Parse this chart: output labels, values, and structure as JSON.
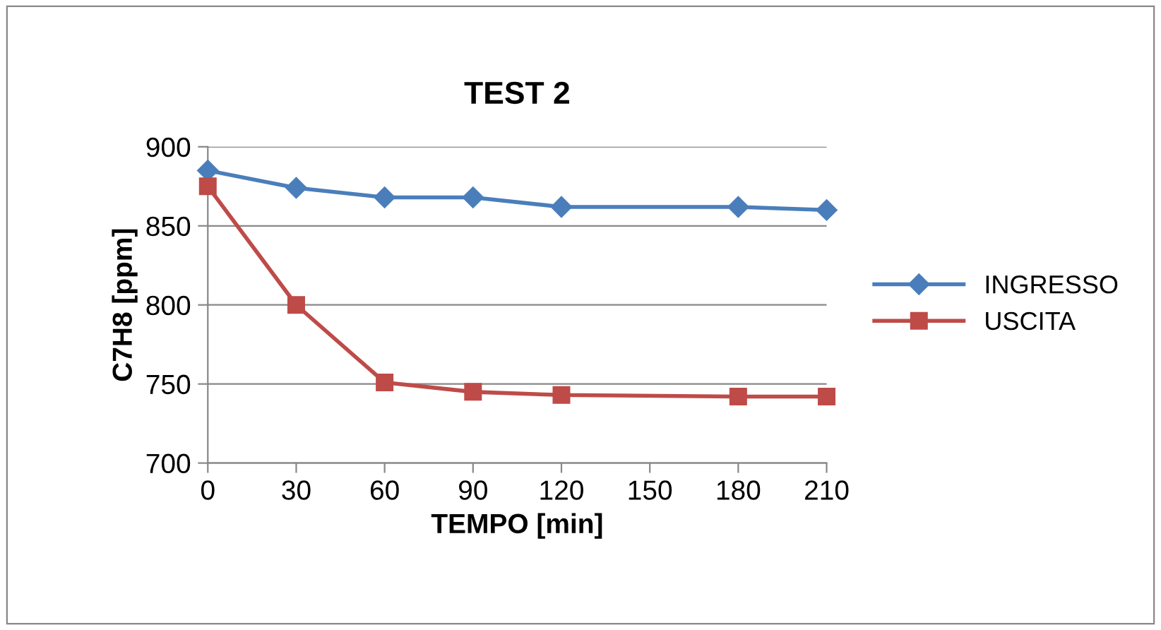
{
  "chart_data": {
    "type": "line",
    "title": "TEST 2",
    "xlabel": "TEMPO [min]",
    "ylabel": "C7H8 [ppm]",
    "x": [
      0,
      30,
      60,
      90,
      120,
      180,
      210
    ],
    "series": [
      {
        "name": "INGRESSO",
        "color": "#4a7ebb",
        "marker": "diamond",
        "values": [
          885,
          874,
          868,
          868,
          862,
          862,
          860
        ]
      },
      {
        "name": "USCITA",
        "color": "#be4b48",
        "marker": "square",
        "values": [
          875,
          800,
          751,
          745,
          743,
          742,
          742
        ]
      }
    ],
    "xlim": [
      0,
      210
    ],
    "xticks": [
      0,
      30,
      60,
      90,
      120,
      150,
      180,
      210
    ],
    "ylim": [
      700,
      900
    ],
    "yticks": [
      700,
      750,
      800,
      850,
      900
    ],
    "grid": "y",
    "legend": "right",
    "line_style": "solid"
  }
}
